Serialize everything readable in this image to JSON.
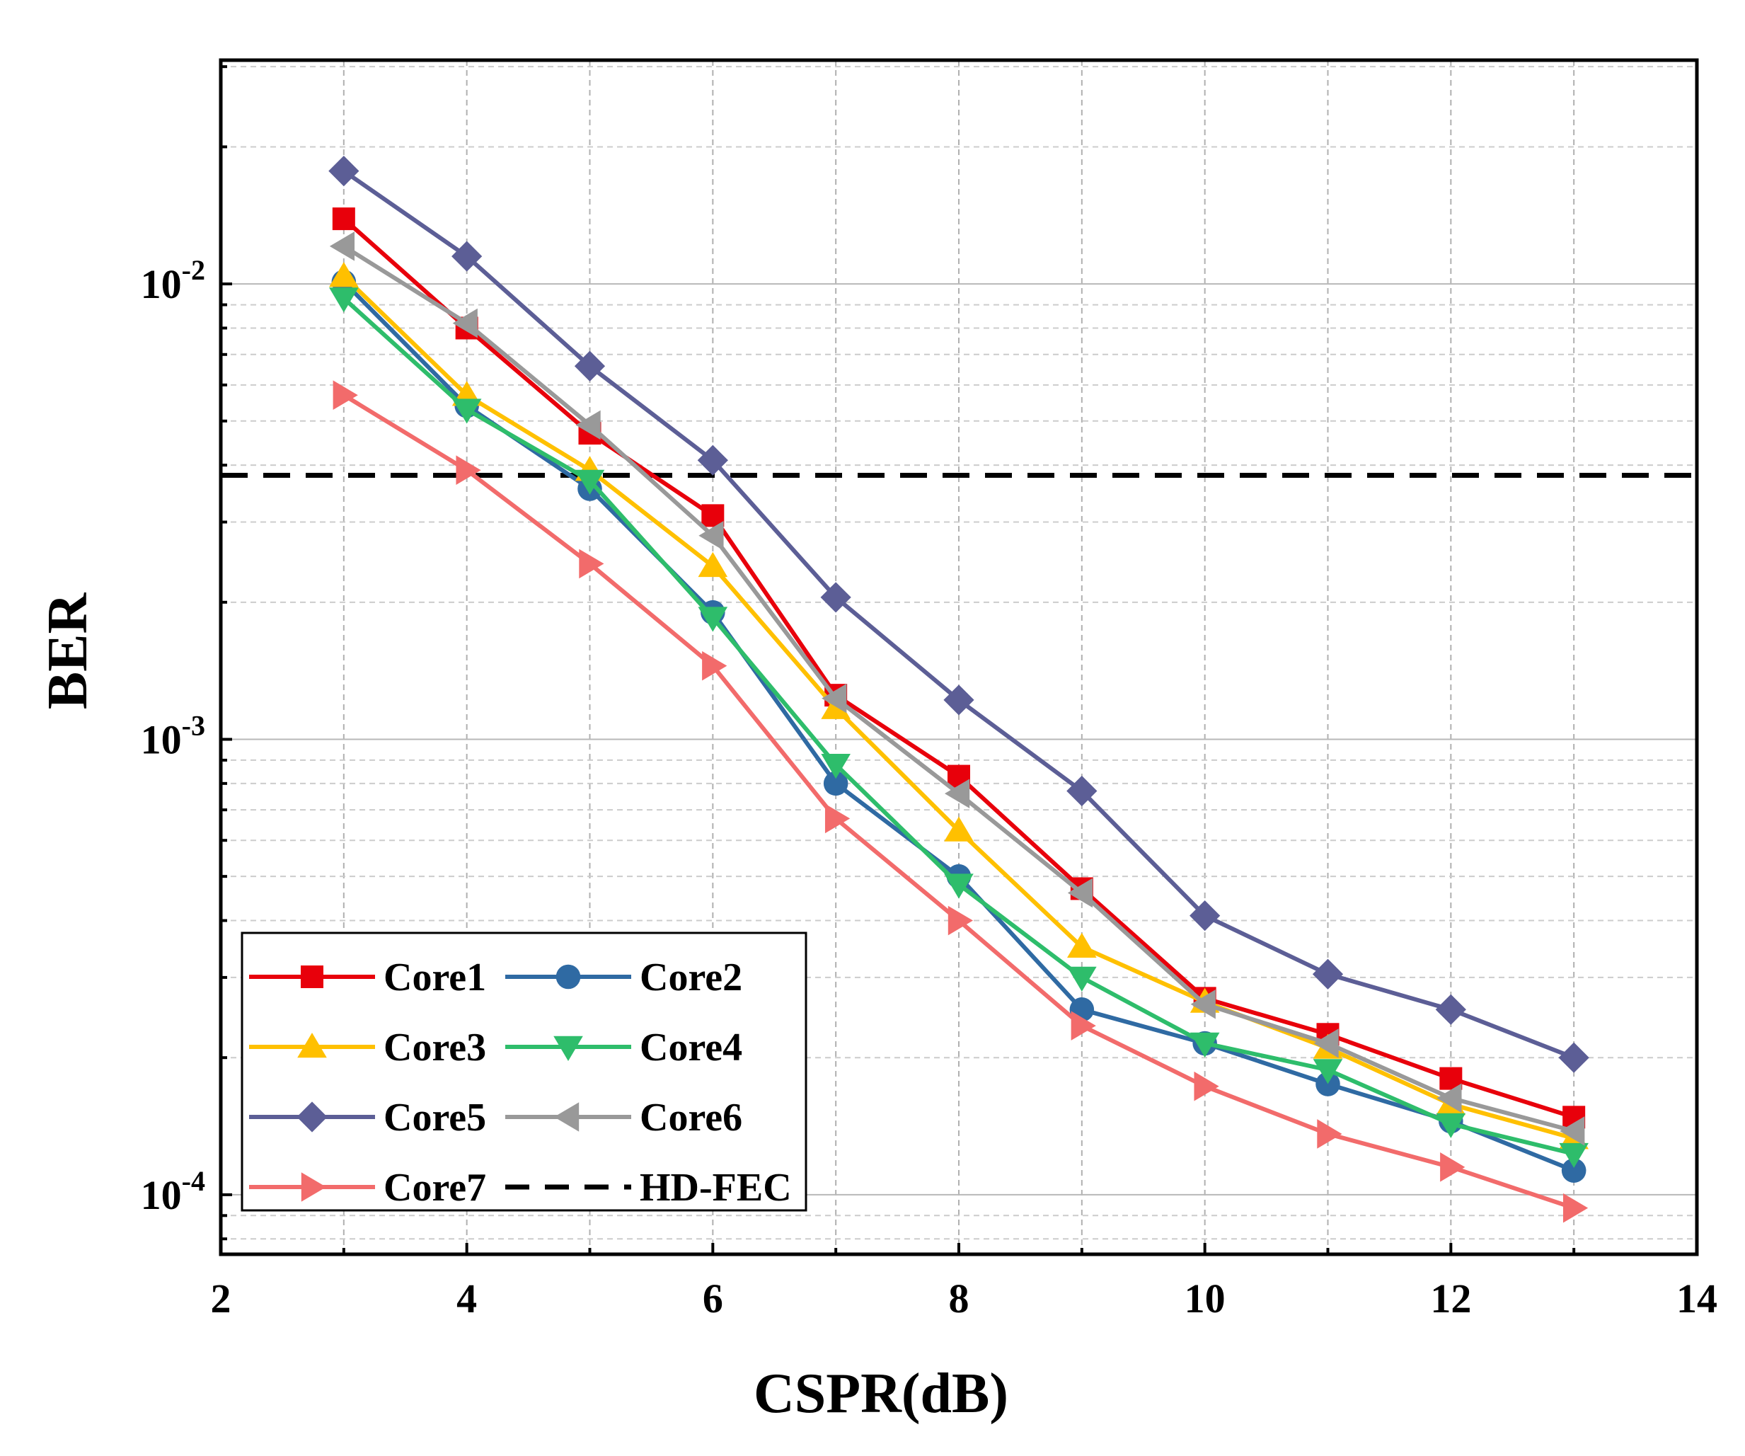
{
  "chart_data": {
    "type": "line",
    "title": "",
    "xlabel": "CSPR(dB)",
    "ylabel": "BER",
    "xlim": [
      2,
      14
    ],
    "ylim": [
      7.4e-05,
      0.031
    ],
    "yscale": "log",
    "grid": true,
    "legend_position": "bottom-left",
    "x_ticks": [
      {
        "value": 2,
        "label": "2"
      },
      {
        "value": 4,
        "label": "4"
      },
      {
        "value": 6,
        "label": "6"
      },
      {
        "value": 8,
        "label": "8"
      },
      {
        "value": 10,
        "label": "10"
      },
      {
        "value": 12,
        "label": "12"
      },
      {
        "value": 14,
        "label": "14"
      }
    ],
    "y_ticks": [
      {
        "value": 0.01,
        "base": "10",
        "exp": "-2"
      },
      {
        "value": 0.001,
        "base": "10",
        "exp": "-3"
      },
      {
        "value": 0.0001,
        "base": "10",
        "exp": "-4"
      }
    ],
    "x": [
      3,
      4,
      5,
      6,
      7,
      8,
      9,
      10,
      11,
      12,
      13
    ],
    "series": [
      {
        "name": "Core1",
        "color": "#e8000b",
        "marker": "square",
        "values": [
          0.0139,
          0.008,
          0.0047,
          0.0031,
          0.00125,
          0.00083,
          0.00047,
          0.00027,
          0.000225,
          0.00018,
          0.000148
        ]
      },
      {
        "name": "Core2",
        "color": "#2f6aa3",
        "marker": "circle",
        "values": [
          0.0101,
          0.0054,
          0.00355,
          0.0019,
          0.0008,
          0.0005,
          0.000255,
          0.000215,
          0.000175,
          0.000145,
          0.000113
        ]
      },
      {
        "name": "Core3",
        "color": "#ffc000",
        "marker": "triangle-up",
        "values": [
          0.0104,
          0.0057,
          0.0039,
          0.0024,
          0.00117,
          0.00063,
          0.00035,
          0.000265,
          0.00021,
          0.000158,
          0.000133
        ]
      },
      {
        "name": "Core4",
        "color": "#2ebd6b",
        "marker": "triangle-down",
        "values": [
          0.0093,
          0.0053,
          0.0037,
          0.00185,
          0.00088,
          0.00048,
          0.0003,
          0.000215,
          0.000188,
          0.000143,
          0.000123
        ]
      },
      {
        "name": "Core5",
        "color": "#5c5e96",
        "marker": "diamond",
        "values": [
          0.0177,
          0.0115,
          0.0066,
          0.0041,
          0.00205,
          0.00122,
          0.00077,
          0.00041,
          0.000305,
          0.000255,
          0.0002
        ]
      },
      {
        "name": "Core6",
        "color": "#999999",
        "marker": "triangle-left",
        "values": [
          0.0121,
          0.0082,
          0.0049,
          0.0028,
          0.00123,
          0.00076,
          0.00046,
          0.000262,
          0.000215,
          0.000163,
          0.000138
        ]
      },
      {
        "name": "Core7",
        "color": "#f26b6b",
        "marker": "triangle-right",
        "values": [
          0.0057,
          0.0039,
          0.00243,
          0.00145,
          0.00067,
          0.0004,
          0.000235,
          0.000173,
          0.000136,
          0.000115,
          9.35e-05
        ]
      }
    ],
    "reference_lines": [
      {
        "name": "HD-FEC",
        "value": 0.0038,
        "color": "#000000",
        "style": "dashed"
      }
    ]
  }
}
